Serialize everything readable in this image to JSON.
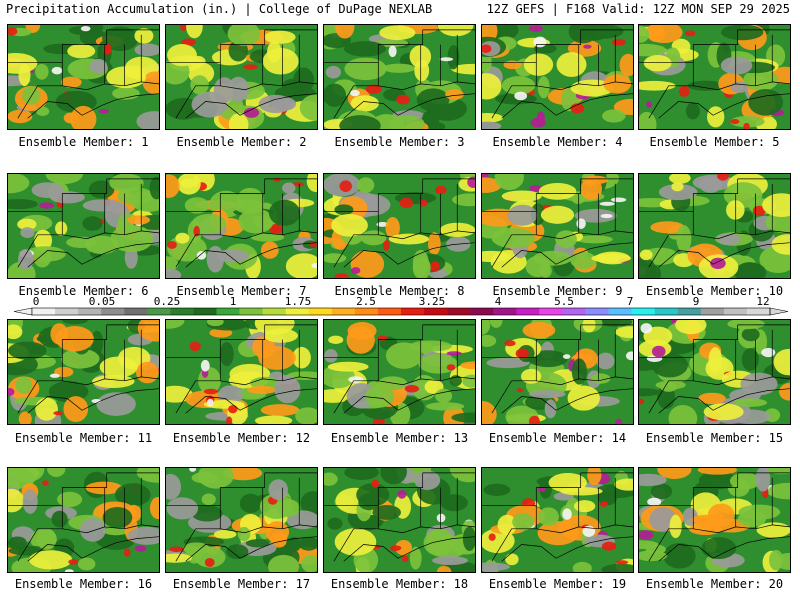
{
  "header": {
    "left": "Precipitation Accumulation (in.) | College of DuPage NEXLAB",
    "right": "12Z GEFS | F168 Valid: 12Z MON SEP 29 2025"
  },
  "members": [
    "Ensemble Member: 1",
    "Ensemble Member: 2",
    "Ensemble Member: 3",
    "Ensemble Member: 4",
    "Ensemble Member: 5",
    "Ensemble Member: 6",
    "Ensemble Member: 7",
    "Ensemble Member: 8",
    "Ensemble Member: 9",
    "Ensemble Member: 10",
    "Ensemble Member: 11",
    "Ensemble Member: 12",
    "Ensemble Member: 13",
    "Ensemble Member: 14",
    "Ensemble Member: 15",
    "Ensemble Member: 16",
    "Ensemble Member: 17",
    "Ensemble Member: 18",
    "Ensemble Member: 19",
    "Ensemble Member: 20"
  ],
  "colorbar": {
    "labels": [
      "0",
      "0.05",
      "0.25",
      "1",
      "1.75",
      "2.5",
      "3.25",
      "4",
      "5.5",
      "7",
      "9",
      "12"
    ],
    "colors": [
      "#f0f0f0",
      "#cfcfcf",
      "#b4b4b4",
      "#8e8e8e",
      "#707070",
      "#4a9a4a",
      "#2d7f2d",
      "#1e6b1e",
      "#3aa83a",
      "#7cc23c",
      "#b4dc3c",
      "#eef03c",
      "#ffd820",
      "#ffb020",
      "#ff8c14",
      "#ff5a14",
      "#e61e14",
      "#c80a14",
      "#a00a28",
      "#8c0a50",
      "#a0148c",
      "#c81ec8",
      "#e646e6",
      "#b464f0",
      "#8c8cff",
      "#5abeff",
      "#28f0f0",
      "#28c8c8",
      "#46a0a0",
      "#a0a0a0",
      "#c0c0c0",
      "#d8d8d8"
    ]
  },
  "palette": {
    "green": "#2f8f2f",
    "light_green": "#7cc23c",
    "dark_green": "#1e6b1e",
    "yellow": "#eef03c",
    "orange": "#ff9a1a",
    "red": "#e61e14",
    "magenta": "#b41e96",
    "gray": "#9a9a9a",
    "white": "#f4f4f4"
  }
}
